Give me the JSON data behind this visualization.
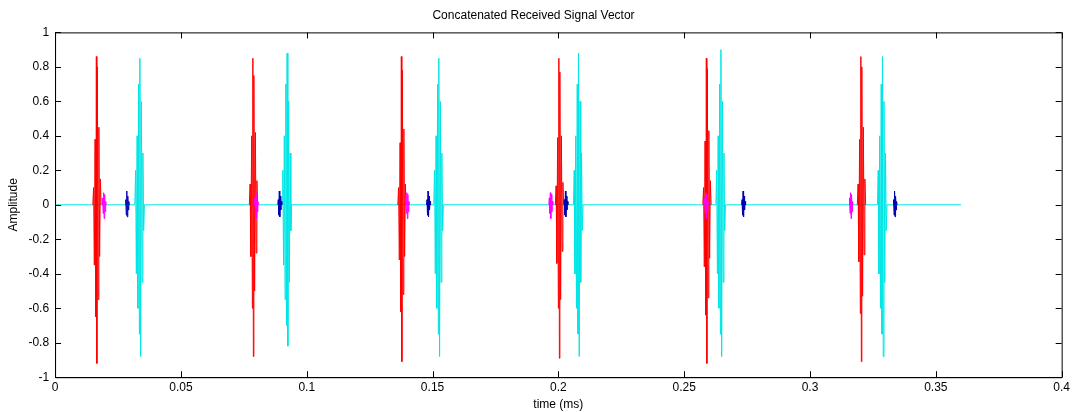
{
  "chart_data": {
    "type": "line",
    "title": "Concatenated Received Signal Vector",
    "xlabel": "time (ms)",
    "ylabel": "Amplitude",
    "xlim": [
      0,
      0.4
    ],
    "xticks": [
      0,
      0.05,
      0.1,
      0.15,
      0.2,
      0.25,
      0.3,
      0.35,
      0.4
    ],
    "ylim": [
      -1,
      1
    ],
    "yticks": [
      -1,
      -0.8,
      -0.6,
      -0.4,
      -0.2,
      0,
      0.2,
      0.4,
      0.6,
      0.8,
      1
    ],
    "grid": false,
    "legend": false,
    "series": [
      {
        "color": "#00e5e5",
        "x": [
          0,
          0.0317,
          0.032,
          0.0323,
          0.0326,
          0.0329,
          0.0332,
          0.0335,
          0.0337,
          0.034,
          0.0343,
          0.0346,
          0.0349,
          0.0352,
          0.0355,
          0.0902,
          0.0905,
          0.0908,
          0.0911,
          0.0914,
          0.0917,
          0.092,
          0.0922,
          0.0925,
          0.0928,
          0.0931,
          0.0934,
          0.0937,
          0.094,
          0.1505,
          0.1508,
          0.1511,
          0.1514,
          0.1517,
          0.152,
          0.1523,
          0.1525,
          0.1528,
          0.1531,
          0.1534,
          0.1537,
          0.154,
          0.1543,
          0.206,
          0.2063,
          0.2066,
          0.2069,
          0.2072,
          0.2075,
          0.2078,
          0.208,
          0.2083,
          0.2086,
          0.2089,
          0.2092,
          0.2095,
          0.2098,
          0.2626,
          0.2629,
          0.2632,
          0.2635,
          0.2638,
          0.2641,
          0.2644,
          0.2646,
          0.2649,
          0.2652,
          0.2655,
          0.2658,
          0.2661,
          0.2664,
          0.3268,
          0.3271,
          0.3274,
          0.3277,
          0.328,
          0.3283,
          0.3286,
          0.3288,
          0.3291,
          0.3294,
          0.3297,
          0.33,
          0.3303,
          0.3306,
          0.36
        ],
        "values": [
          0,
          0,
          0.2,
          -0.4,
          0.4,
          -0.6,
          0.7,
          -0.75,
          0.85,
          -0.88,
          0.6,
          -0.45,
          0.3,
          -0.15,
          0,
          0,
          0.2,
          -0.35,
          0.4,
          -0.55,
          0.7,
          -0.7,
          0.88,
          -0.82,
          0.6,
          -0.45,
          0.3,
          -0.15,
          0,
          0,
          0.2,
          -0.4,
          0.4,
          -0.6,
          0.7,
          -0.75,
          0.85,
          -0.88,
          0.6,
          -0.45,
          0.3,
          -0.15,
          0,
          0,
          0.2,
          -0.4,
          0.4,
          -0.6,
          0.7,
          -0.75,
          0.88,
          -0.88,
          0.6,
          -0.45,
          0.3,
          -0.15,
          0,
          0,
          0.2,
          -0.4,
          0.4,
          -0.6,
          0.7,
          -0.75,
          0.9,
          -0.88,
          0.6,
          -0.45,
          0.3,
          -0.15,
          0,
          0,
          0.2,
          -0.4,
          0.4,
          -0.6,
          0.7,
          -0.75,
          0.86,
          -0.88,
          0.6,
          -0.45,
          0.3,
          -0.15,
          0,
          0
        ]
      },
      {
        "color": "#ff0000",
        "x": [
          0.015,
          0.0153,
          0.0156,
          0.0159,
          0.0162,
          0.0164,
          0.0166,
          0.0168,
          0.0171,
          0.0174,
          0.0177,
          0.018,
          0.0183,
          0.05,
          0.0772,
          0.0775,
          0.0778,
          0.0781,
          0.0784,
          0.0786,
          0.0788,
          0.079,
          0.0793,
          0.0796,
          0.0799,
          0.0802,
          0.0805,
          0.11,
          0.1362,
          0.1365,
          0.1368,
          0.1371,
          0.1374,
          0.1376,
          0.1378,
          0.138,
          0.1383,
          0.1386,
          0.1389,
          0.1392,
          0.1395,
          0.17,
          0.1988,
          0.1991,
          0.1994,
          0.1997,
          0.2,
          0.2002,
          0.2004,
          0.2006,
          0.2009,
          0.2012,
          0.2015,
          0.2018,
          0.2021,
          0.23,
          0.2574,
          0.2577,
          0.258,
          0.2583,
          0.2586,
          0.2588,
          0.259,
          0.2592,
          0.2595,
          0.2598,
          0.2601,
          0.2604,
          0.2607,
          0.29,
          0.3188,
          0.3191,
          0.3194,
          0.3197,
          0.32,
          0.3202,
          0.3204,
          0.3206,
          0.3209,
          0.3212,
          0.3215,
          0.3218,
          0.3221
        ],
        "values": [
          0,
          0.1,
          -0.35,
          0.38,
          -0.65,
          0.86,
          -0.92,
          0.8,
          -0.55,
          0.45,
          -0.3,
          0.15,
          0,
          null,
          0,
          0.12,
          -0.3,
          0.4,
          -0.6,
          0.85,
          -0.88,
          0.75,
          -0.5,
          0.42,
          -0.28,
          0.14,
          0,
          null,
          0,
          0.1,
          -0.32,
          0.36,
          -0.62,
          0.86,
          -0.91,
          0.78,
          -0.52,
          0.44,
          -0.3,
          0.12,
          0,
          null,
          0,
          0.11,
          -0.34,
          0.39,
          -0.6,
          0.85,
          -0.89,
          0.77,
          -0.55,
          0.4,
          -0.27,
          0.13,
          0,
          null,
          0,
          0.1,
          -0.36,
          0.37,
          -0.64,
          0.85,
          -0.92,
          0.79,
          -0.54,
          0.43,
          -0.31,
          0.14,
          0,
          null,
          0,
          0.12,
          -0.33,
          0.38,
          -0.63,
          0.86,
          -0.91,
          0.8,
          -0.53,
          0.45,
          -0.29,
          0.15,
          0
        ]
      },
      {
        "color": "#0000b0",
        "x": [
          0.0279,
          0.0281,
          0.0283,
          0.0285,
          0.0287,
          0.0289,
          0.0291,
          0.0293,
          0.0295,
          0.06,
          0.0885,
          0.0887,
          0.0889,
          0.0891,
          0.0893,
          0.0895,
          0.0897,
          0.0899,
          0.0901,
          0.12,
          0.1476,
          0.1478,
          0.148,
          0.1482,
          0.1484,
          0.1486,
          0.1488,
          0.149,
          0.1492,
          0.18,
          0.2022,
          0.2024,
          0.2026,
          0.2028,
          0.203,
          0.2032,
          0.2034,
          0.2036,
          0.2038,
          0.24,
          0.2728,
          0.273,
          0.2732,
          0.2734,
          0.2736,
          0.2738,
          0.274,
          0.2742,
          0.2744,
          0.3,
          0.333,
          0.3332,
          0.3334,
          0.3336,
          0.3338,
          0.334,
          0.3342,
          0.3344,
          0.3346
        ],
        "values": [
          0,
          0.03,
          -0.06,
          0.08,
          -0.07,
          0.05,
          -0.03,
          0.02,
          0,
          null,
          0,
          0.03,
          -0.06,
          0.08,
          -0.07,
          0.05,
          -0.03,
          0.02,
          0,
          null,
          0,
          0.03,
          -0.06,
          0.08,
          -0.07,
          0.05,
          -0.03,
          0.02,
          0,
          null,
          0,
          0.03,
          -0.06,
          0.08,
          -0.07,
          0.05,
          -0.03,
          0.02,
          0,
          null,
          0,
          0.03,
          -0.06,
          0.08,
          -0.07,
          0.05,
          -0.03,
          0.02,
          0,
          null,
          0,
          0.03,
          -0.06,
          0.08,
          -0.07,
          0.05,
          -0.03,
          0.02,
          0
        ]
      },
      {
        "color": "#ff00ff",
        "x": [
          0.0187,
          0.0189,
          0.0191,
          0.0193,
          0.0195,
          0.0197,
          0.0199,
          0.0201,
          0.0203,
          0.05,
          0.0792,
          0.0794,
          0.0796,
          0.0798,
          0.08,
          0.0802,
          0.0804,
          0.0806,
          0.0808,
          0.11,
          0.1392,
          0.1394,
          0.1396,
          0.1398,
          0.14,
          0.1402,
          0.1404,
          0.1406,
          0.1408,
          0.17,
          0.1962,
          0.1964,
          0.1966,
          0.1968,
          0.197,
          0.1972,
          0.1974,
          0.1976,
          0.1978,
          0.23,
          0.258,
          0.2582,
          0.2584,
          0.2586,
          0.2588,
          0.259,
          0.2592,
          0.2594,
          0.2596,
          0.29,
          0.3155,
          0.3157,
          0.3159,
          0.3161,
          0.3163,
          0.3165,
          0.3167,
          0.3169,
          0.3171
        ],
        "values": [
          0,
          0.04,
          -0.05,
          0.07,
          -0.08,
          0.06,
          -0.04,
          0.02,
          0,
          null,
          0,
          0.04,
          -0.05,
          0.07,
          -0.08,
          0.06,
          -0.04,
          0.02,
          0,
          null,
          0,
          0.04,
          -0.05,
          0.07,
          -0.08,
          0.06,
          -0.04,
          0.02,
          0,
          null,
          0,
          0.04,
          -0.05,
          0.07,
          -0.08,
          0.06,
          -0.04,
          0.02,
          0,
          null,
          0,
          0.04,
          -0.05,
          0.07,
          -0.08,
          0.06,
          -0.04,
          0.02,
          0,
          null,
          0,
          0.04,
          -0.05,
          0.07,
          -0.08,
          0.06,
          -0.04,
          0.02,
          0
        ]
      }
    ]
  }
}
